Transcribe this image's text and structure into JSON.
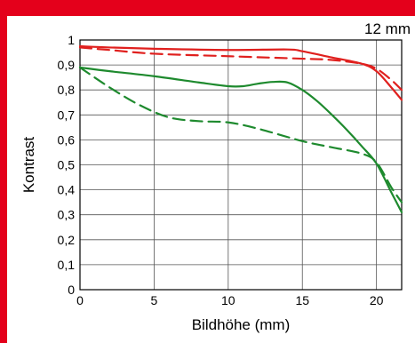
{
  "chart_data": {
    "type": "line",
    "title": "",
    "annotation": "12 mm",
    "xlabel": "Bildhöhe (mm)",
    "ylabel": "Kontrast",
    "xlim": [
      0,
      21.7
    ],
    "ylim": [
      0,
      1
    ],
    "x_ticks": [
      {
        "value": 0,
        "label": "0"
      },
      {
        "value": 5,
        "label": "5"
      },
      {
        "value": 10,
        "label": "10"
      },
      {
        "value": 15,
        "label": "15"
      },
      {
        "value": 20,
        "label": "20"
      }
    ],
    "y_ticks": [
      {
        "value": 0,
        "label": "0"
      },
      {
        "value": 0.1,
        "label": "0,1"
      },
      {
        "value": 0.2,
        "label": "0,2"
      },
      {
        "value": 0.3,
        "label": "0,3"
      },
      {
        "value": 0.4,
        "label": "0,4"
      },
      {
        "value": 0.5,
        "label": "0,5"
      },
      {
        "value": 0.6,
        "label": "0,6"
      },
      {
        "value": 0.7,
        "label": "0,7"
      },
      {
        "value": 0.8,
        "label": "0,8"
      },
      {
        "value": 0.9,
        "label": "0,9"
      },
      {
        "value": 1,
        "label": "1"
      }
    ],
    "grid": true,
    "legend": "none",
    "series": [
      {
        "color": "#e0201e",
        "dash": "solid",
        "x": [
          0,
          2,
          5,
          10,
          14,
          15,
          17,
          19,
          20,
          21,
          21.7
        ],
        "y": [
          0.975,
          0.97,
          0.965,
          0.96,
          0.962,
          0.955,
          0.93,
          0.905,
          0.875,
          0.81,
          0.76
        ]
      },
      {
        "color": "#e0201e",
        "dash": "dashed",
        "x": [
          0,
          2,
          5,
          10,
          15,
          17,
          19,
          20,
          21,
          21.7
        ],
        "y": [
          0.97,
          0.96,
          0.945,
          0.935,
          0.925,
          0.92,
          0.905,
          0.885,
          0.84,
          0.8
        ]
      },
      {
        "color": "#1e8a2e",
        "dash": "solid",
        "x": [
          0,
          2,
          5,
          8,
          10,
          11,
          12,
          13,
          14,
          15,
          16,
          17,
          18,
          19,
          20,
          21,
          21.7
        ],
        "y": [
          0.89,
          0.875,
          0.855,
          0.83,
          0.815,
          0.815,
          0.825,
          0.832,
          0.83,
          0.8,
          0.755,
          0.7,
          0.64,
          0.575,
          0.505,
          0.39,
          0.31
        ]
      },
      {
        "color": "#1e8a2e",
        "dash": "dashed",
        "x": [
          0,
          2,
          4,
          6,
          8,
          10,
          12,
          15,
          17,
          19,
          20,
          21,
          21.7
        ],
        "y": [
          0.89,
          0.81,
          0.74,
          0.69,
          0.675,
          0.67,
          0.645,
          0.595,
          0.57,
          0.545,
          0.51,
          0.41,
          0.35
        ]
      }
    ]
  }
}
